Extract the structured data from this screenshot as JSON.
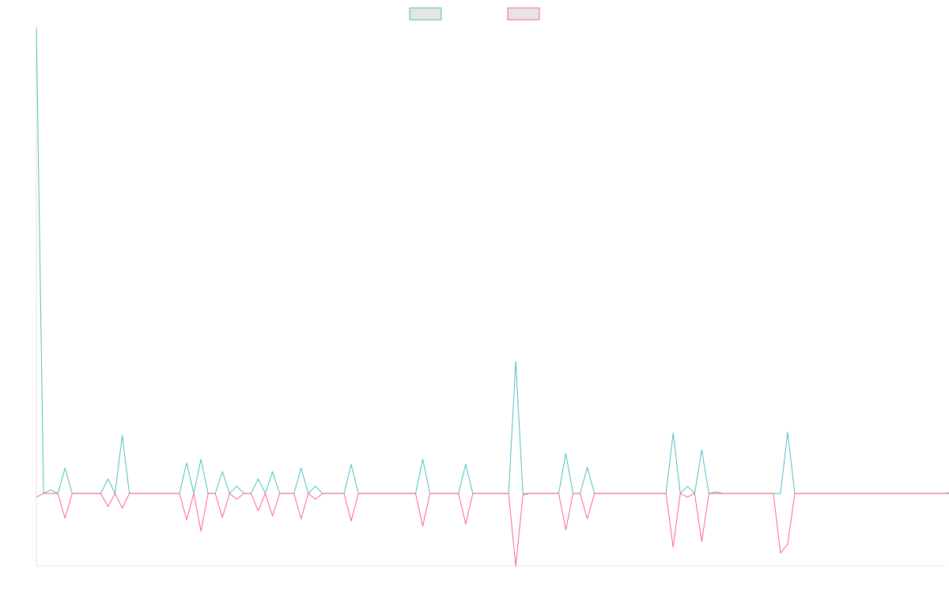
{
  "chart_data": {
    "type": "line",
    "title": "",
    "xlabel": "",
    "ylabel": "",
    "legend_position": "top-center",
    "grid": false,
    "ylim": [
      -1.0,
      6.4
    ],
    "x_count": 128,
    "series": [
      {
        "color": "#4bc0c0",
        "fill": "#e5e5e5",
        "values": [
          6.4,
          0,
          0.05,
          0,
          0.35,
          0,
          0,
          0,
          0,
          0,
          0.2,
          0,
          0.8,
          0,
          0,
          0,
          0,
          0,
          0,
          0,
          0,
          0.42,
          0,
          0.47,
          0,
          0,
          0.3,
          0,
          0.1,
          0,
          0,
          0.2,
          0,
          0.3,
          0,
          0,
          0,
          0.35,
          0,
          0.1,
          0,
          0,
          0,
          0,
          0.4,
          0,
          0,
          0,
          0,
          0,
          0,
          0,
          0,
          0,
          0.47,
          0,
          0,
          0,
          0,
          0,
          0.4,
          0,
          0,
          0,
          0,
          0,
          0,
          1.82,
          0,
          0,
          0,
          0,
          0,
          0,
          0.55,
          0,
          0,
          0.36,
          0,
          0,
          0,
          0,
          0,
          0,
          0,
          0,
          0,
          0,
          0,
          0.83,
          0,
          0.1,
          0,
          0.6,
          0,
          0.02,
          0,
          0,
          0,
          0,
          0,
          0,
          0,
          0,
          0,
          0.84,
          0,
          0,
          0,
          0,
          0,
          0,
          0,
          0,
          0,
          0,
          0,
          0,
          0,
          0,
          0,
          0,
          0,
          0,
          0,
          0,
          0,
          0,
          0.02,
          0
        ]
      },
      {
        "color": "#ff6384",
        "fill": "#e5e5e5",
        "values": [
          -0.05,
          0,
          0,
          0,
          -0.34,
          0,
          0,
          0,
          0,
          0,
          -0.18,
          0,
          -0.2,
          0,
          0,
          0,
          0,
          0,
          0,
          0,
          0,
          -0.36,
          0,
          -0.52,
          0,
          0,
          -0.33,
          0,
          -0.08,
          0,
          0,
          -0.24,
          0,
          -0.31,
          0,
          0,
          0,
          -0.35,
          0,
          -0.08,
          0,
          0,
          0,
          0,
          -0.38,
          0,
          0,
          0,
          0,
          0,
          0,
          0,
          0,
          0,
          -0.45,
          0,
          0,
          0,
          0,
          0,
          -0.42,
          0,
          0,
          0,
          0,
          0,
          0,
          -1.0,
          -0.02,
          0,
          0,
          0,
          0,
          0,
          -0.5,
          0,
          0,
          -0.35,
          0,
          0,
          0,
          0,
          0,
          0,
          0,
          0,
          0,
          0,
          0,
          -0.74,
          0,
          -0.05,
          0,
          -0.66,
          0,
          0,
          0,
          0,
          0,
          0,
          0,
          0,
          0,
          0,
          -0.82,
          -0.7,
          0,
          0,
          0,
          0,
          0,
          0,
          0,
          0,
          0,
          0,
          0,
          0,
          0,
          0,
          0,
          0,
          0,
          0,
          0,
          0,
          0,
          0,
          0,
          0
        ]
      }
    ]
  }
}
